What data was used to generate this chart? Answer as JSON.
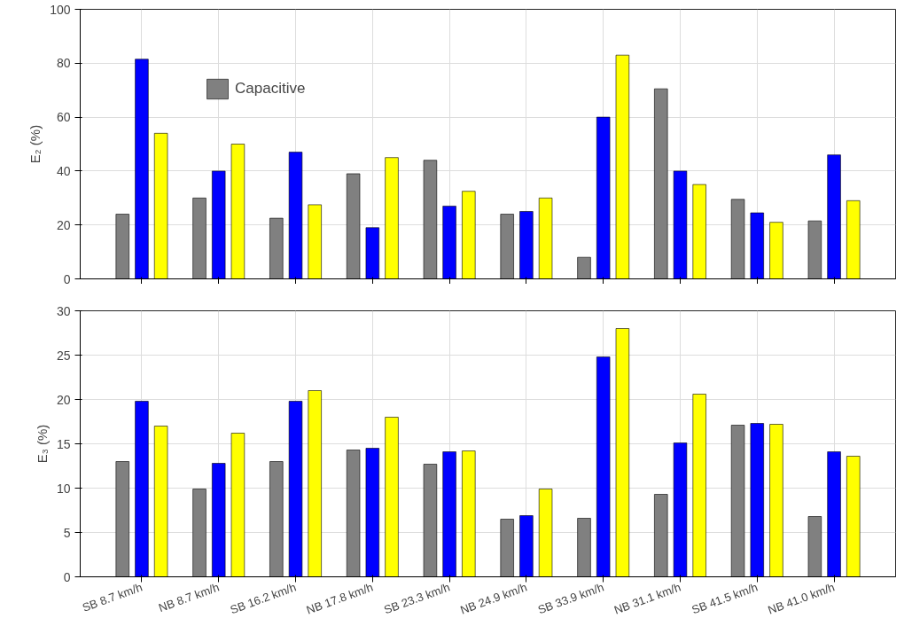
{
  "chart_data": [
    {
      "type": "bar",
      "ylabel": "E₂ (%)",
      "categories": [
        null,
        null,
        null,
        null,
        null,
        null,
        null,
        null,
        null,
        null
      ],
      "series": [
        {
          "name": "Capacitive",
          "color": "#808080",
          "values": [
            24,
            30,
            22.5,
            39,
            44,
            24,
            8,
            70.5,
            29.5,
            21.5
          ]
        },
        {
          "color": "#0000ff",
          "values": [
            81.5,
            40,
            47,
            19,
            27,
            25,
            60,
            40,
            24.5,
            46
          ]
        },
        {
          "color": "#ffff00",
          "values": [
            54,
            50,
            27.5,
            45,
            32.5,
            30,
            83,
            35,
            21,
            29
          ]
        }
      ],
      "ylim": [
        0,
        100
      ],
      "yticks": [
        0,
        20,
        40,
        60,
        80,
        100
      ],
      "grid": true,
      "legend": "top left",
      "tick_labels": "y"
    },
    {
      "type": "bar",
      "ylabel": "E₃ (%)",
      "categories": [
        "SB 8.7 km/h",
        "NB 8.7 km/h",
        "SB 16.2 km/h",
        "NB 17.8 km/h",
        "SB 23.3 km/h",
        "NB 24.9 km/h",
        "SB 33.9 km/h",
        "NB 31.1 km/h",
        "SB 41.5 km/h",
        "NB 41.0 km/h"
      ],
      "series": [
        {
          "color": "#808080",
          "values": [
            13,
            9.9,
            13,
            14.3,
            12.7,
            6.5,
            6.6,
            9.3,
            17.1,
            6.8
          ]
        },
        {
          "color": "#0000ff",
          "values": [
            19.8,
            12.8,
            19.8,
            14.5,
            14.1,
            6.9,
            24.8,
            15.1,
            17.3,
            14.1
          ]
        },
        {
          "color": "#ffff00",
          "values": [
            17,
            16.2,
            21,
            18,
            14.2,
            9.9,
            28,
            20.6,
            17.2,
            13.6
          ]
        }
      ],
      "ylim": [
        0,
        30
      ],
      "yticks": [
        0,
        5,
        10,
        15,
        20,
        25,
        30
      ],
      "grid": true
    }
  ]
}
